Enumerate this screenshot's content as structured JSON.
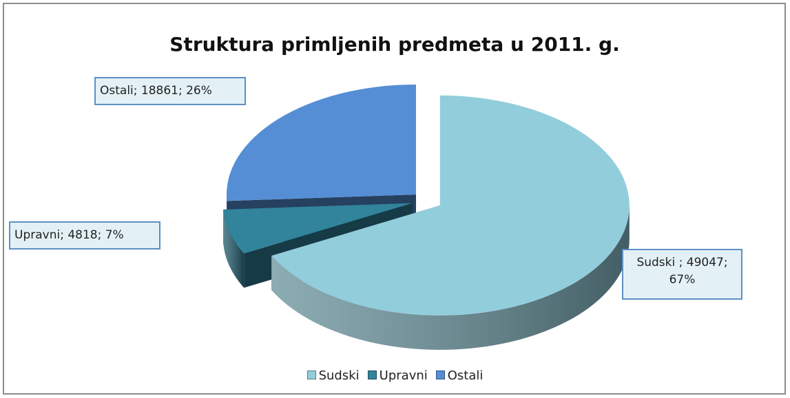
{
  "chart_data": {
    "type": "pie3d",
    "title": "Struktura primljenih predmeta u 2011. g.",
    "categories": [
      "Sudski",
      "Upravni",
      "Ostali"
    ],
    "values": [
      49047,
      4818,
      18861
    ],
    "value_labels": [
      "Sudski ; 49047; 67%",
      "Upravni; 4818; 7%",
      "Ostali; 18861; 26%"
    ],
    "colors": [
      "#92cddc",
      "#31849b",
      "#558ed5"
    ],
    "legend": "bottom"
  }
}
